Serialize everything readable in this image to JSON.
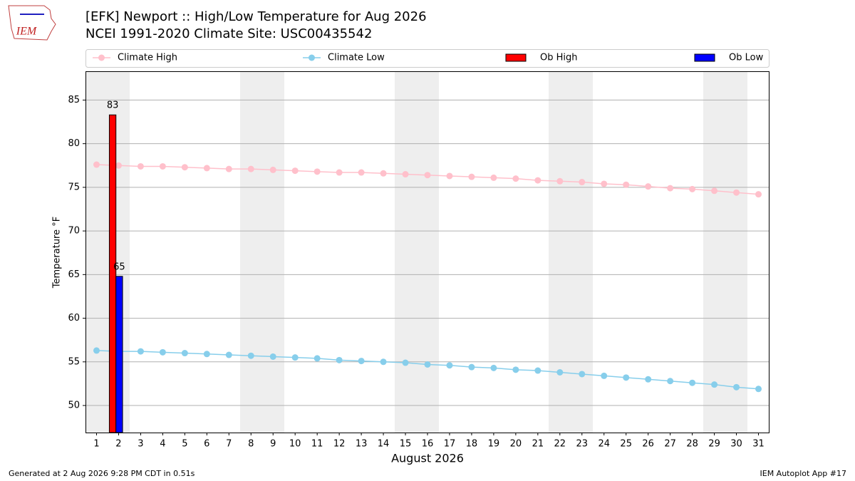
{
  "logo": "IEM",
  "footer_left": "Generated at 2 Aug 2026 9:28 PM CDT in 0.51s",
  "footer_right": "IEM Autoplot App #17",
  "chart_data": {
    "type": "line",
    "title": "[EFK] Newport :: High/Low Temperature for Aug 2026",
    "subtitle": "NCEI 1991-2020 Climate Site: USC00435542",
    "x_label": "August 2026",
    "y_label": "Temperature °F",
    "x": [
      1,
      2,
      3,
      4,
      5,
      6,
      7,
      8,
      9,
      10,
      11,
      12,
      13,
      14,
      15,
      16,
      17,
      18,
      19,
      20,
      21,
      22,
      23,
      24,
      25,
      26,
      27,
      28,
      29,
      30,
      31
    ],
    "xlim": [
      0.5,
      31.5
    ],
    "ylim": [
      46.9,
      88.3
    ],
    "yticks": [
      50,
      55,
      60,
      65,
      70,
      75,
      80,
      85
    ],
    "grid": true,
    "legend": "top",
    "series": [
      {
        "name": "Climate High",
        "type": "line",
        "color": "#ffc0cb",
        "values": [
          77.6,
          77.5,
          77.4,
          77.4,
          77.3,
          77.2,
          77.1,
          77.1,
          77.0,
          76.9,
          76.8,
          76.7,
          76.7,
          76.6,
          76.5,
          76.4,
          76.3,
          76.2,
          76.1,
          76.0,
          75.8,
          75.7,
          75.6,
          75.4,
          75.3,
          75.1,
          74.9,
          74.8,
          74.6,
          74.4,
          74.2
        ]
      },
      {
        "name": "Climate Low",
        "type": "line",
        "color": "#87ceeb",
        "values": [
          56.3,
          56.2,
          56.2,
          56.1,
          56.0,
          55.9,
          55.8,
          55.7,
          55.6,
          55.5,
          55.4,
          55.2,
          55.1,
          55.0,
          54.9,
          54.7,
          54.6,
          54.4,
          54.3,
          54.1,
          54.0,
          53.8,
          53.6,
          53.4,
          53.2,
          53.0,
          52.8,
          52.6,
          52.4,
          52.1,
          51.9
        ]
      },
      {
        "name": "Ob High",
        "type": "bar",
        "color": "#ff0000",
        "values": [
          null,
          83.3,
          null,
          null,
          null,
          null,
          null,
          null,
          null,
          null,
          null,
          null,
          null,
          null,
          null,
          null,
          null,
          null,
          null,
          null,
          null,
          null,
          null,
          null,
          null,
          null,
          null,
          null,
          null,
          null,
          null
        ],
        "value_labels": [
          null,
          "83",
          null,
          null,
          null,
          null,
          null,
          null,
          null,
          null,
          null,
          null,
          null,
          null,
          null,
          null,
          null,
          null,
          null,
          null,
          null,
          null,
          null,
          null,
          null,
          null,
          null,
          null,
          null,
          null,
          null
        ]
      },
      {
        "name": "Ob Low",
        "type": "bar",
        "color": "#0000ff",
        "values": [
          null,
          64.8,
          null,
          null,
          null,
          null,
          null,
          null,
          null,
          null,
          null,
          null,
          null,
          null,
          null,
          null,
          null,
          null,
          null,
          null,
          null,
          null,
          null,
          null,
          null,
          null,
          null,
          null,
          null,
          null,
          null
        ],
        "value_labels": [
          null,
          "65",
          null,
          null,
          null,
          null,
          null,
          null,
          null,
          null,
          null,
          null,
          null,
          null,
          null,
          null,
          null,
          null,
          null,
          null,
          null,
          null,
          null,
          null,
          null,
          null,
          null,
          null,
          null,
          null,
          null
        ]
      }
    ]
  }
}
